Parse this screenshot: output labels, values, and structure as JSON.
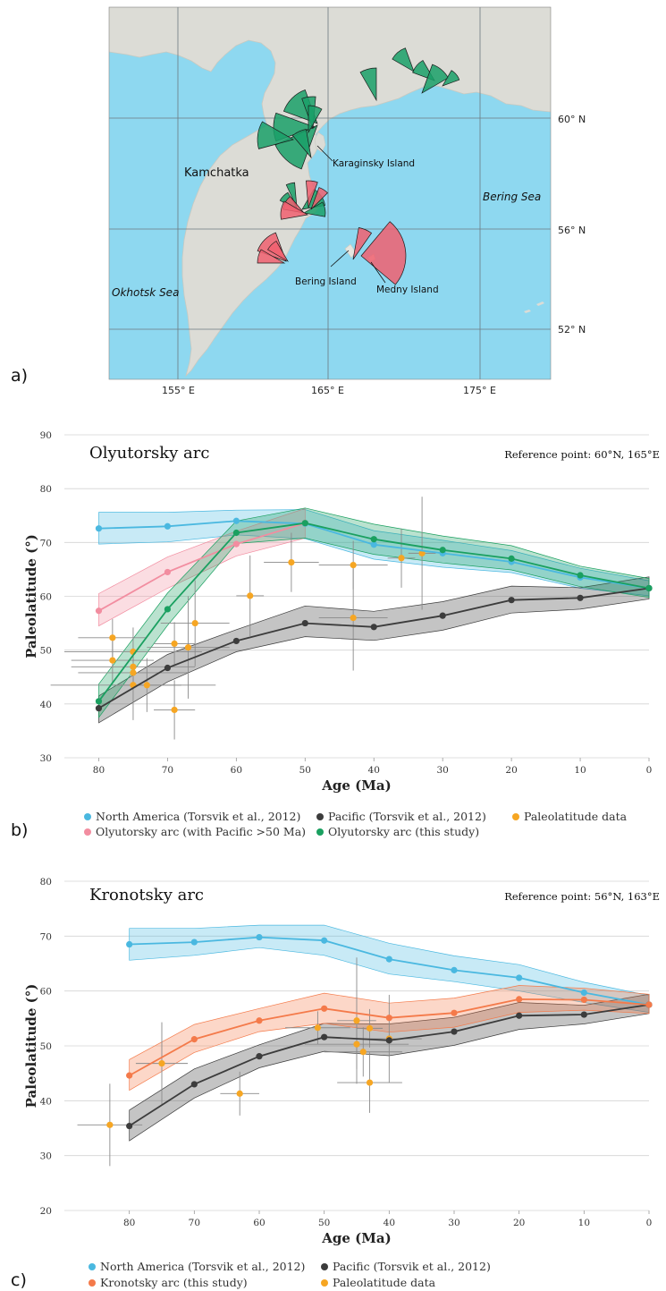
{
  "panel_labels": {
    "a": "a)",
    "b": "b)",
    "c": "c)"
  },
  "map": {
    "place_labels": {
      "kamchatka": "Kamchatka",
      "karaginsky": "Karaginsky Island",
      "bering_sea": "Bering Sea",
      "okhotsk": "Okhotsk Sea",
      "bering_island": "Bering Island",
      "medny": "Medny Island"
    },
    "lat_labels": [
      "60° N",
      "56° N",
      "52° N"
    ],
    "lon_labels": [
      "155° E",
      "165° E",
      "175° E"
    ],
    "colors": {
      "sea": "#8ed8f0",
      "land": "#dcdcd6",
      "green_wedge": "#1aa068",
      "red_wedge": "#f06070"
    }
  },
  "chart_data": [
    {
      "type": "line",
      "title": "Olyutorsky arc",
      "annotation": "Reference point: 60°N, 165°E",
      "xlabel": "Age (Ma)",
      "ylabel": "Paleolatitude (°)",
      "xlim": [
        85,
        0
      ],
      "ylim": [
        30,
        90
      ],
      "xticks": [
        "80",
        "70",
        "60",
        "50",
        "40",
        "30",
        "20",
        "10",
        "0"
      ],
      "yticks": [
        "30",
        "40",
        "50",
        "60",
        "70",
        "80",
        "90"
      ],
      "series": [
        {
          "name": "North America (Torsvik et al., 2012)",
          "color": "#4ab8e0",
          "x": [
            80,
            70,
            60,
            50,
            40,
            30,
            20,
            10,
            0
          ],
          "y": [
            72.6,
            73.0,
            74.0,
            73.5,
            69.6,
            68.0,
            66.4,
            63.5,
            61.5
          ],
          "lower": [
            69.7,
            70.1,
            71.4,
            70.7,
            66.9,
            65.4,
            64.4,
            61.5,
            60.1
          ],
          "upper": [
            75.6,
            75.6,
            76.0,
            76.1,
            72.2,
            70.4,
            68.5,
            65.2,
            62.9
          ]
        },
        {
          "name": "Pacific (Torsvik et al., 2012)",
          "color": "#3c3c3c",
          "x": [
            80,
            70,
            60,
            50,
            40,
            30,
            20,
            10,
            0
          ],
          "y": [
            39.2,
            46.7,
            51.7,
            55.0,
            54.3,
            56.4,
            59.3,
            59.7,
            61.5
          ],
          "lower": [
            36.5,
            44.1,
            49.7,
            52.5,
            51.8,
            53.7,
            56.9,
            57.6,
            59.5
          ],
          "upper": [
            41.5,
            49.2,
            53.8,
            58.2,
            57.2,
            59.0,
            61.9,
            61.6,
            63.6
          ]
        },
        {
          "name": "Paleolatitude data",
          "color": "#f6a623"
        },
        {
          "name": "Olyutorsky arc (with Pacific >50 Ma)",
          "color": "#f28da0",
          "x": [
            80,
            70,
            60,
            50
          ],
          "y": [
            57.3,
            64.5,
            69.7,
            73.6
          ],
          "lower": [
            54.5,
            61.5,
            67.5,
            70.8
          ],
          "upper": [
            60.5,
            67.3,
            72.1,
            76.3
          ]
        },
        {
          "name": "Olyutorsky arc (this study)",
          "color": "#1aa060",
          "x": [
            80,
            70,
            60,
            50,
            40,
            30,
            20,
            10,
            0
          ],
          "y": [
            40.5,
            57.6,
            71.8,
            73.6,
            70.6,
            68.6,
            67.0,
            63.9,
            61.5
          ],
          "lower": [
            37.5,
            54.6,
            69.8,
            70.8,
            67.8,
            66.2,
            64.9,
            61.8,
            59.8
          ],
          "upper": [
            43.7,
            60.6,
            74.0,
            76.4,
            73.4,
            71.2,
            69.4,
            65.6,
            63.3
          ]
        }
      ],
      "points": [
        {
          "x": 78,
          "y": 52.3,
          "xerr": 5,
          "yerr": 3.5
        },
        {
          "x": 78,
          "y": 48.1,
          "xerr": 6,
          "yerr": 4
        },
        {
          "x": 75,
          "y": 49.7,
          "xerr": 10,
          "yerr": 4.5
        },
        {
          "x": 75,
          "y": 46.9,
          "xerr": 9,
          "yerr": 3.5
        },
        {
          "x": 75,
          "y": 45.8,
          "xerr": 8,
          "yerr": 2.5
        },
        {
          "x": 75,
          "y": 43.5,
          "xerr": 12,
          "yerr": 6.5
        },
        {
          "x": 73,
          "y": 43.5,
          "xerr": 5,
          "yerr": 5
        },
        {
          "x": 69,
          "y": 51.2,
          "xerr": 3,
          "yerr": 4
        },
        {
          "x": 69,
          "y": 38.9,
          "xerr": 3,
          "yerr": 5.5
        },
        {
          "x": 67,
          "y": 50.5,
          "xerr": 6,
          "yerr": 9.5
        },
        {
          "x": 66,
          "y": 55.0,
          "xerr": 5,
          "yerr": 8
        },
        {
          "x": 58,
          "y": 60.1,
          "xerr": 2,
          "yerr": 7.5
        },
        {
          "x": 52,
          "y": 66.3,
          "xerr": 4,
          "yerr": 5.5
        },
        {
          "x": 43,
          "y": 65.8,
          "xerr": 5,
          "yerr": 4.5
        },
        {
          "x": 43,
          "y": 56.0,
          "xerr": 5,
          "yerr": 9.8
        },
        {
          "x": 36,
          "y": 67.1,
          "xerr": 2,
          "yerr": 5.5
        },
        {
          "x": 33,
          "y": 68.0,
          "xerr": 2,
          "yerr": 10.5
        }
      ],
      "legend": [
        {
          "label": "North America (Torsvik et al., 2012)",
          "color": "#4ab8e0"
        },
        {
          "label": "Pacific (Torsvik et al., 2012)",
          "color": "#3c3c3c"
        },
        {
          "label": "Paleolatitude data",
          "color": "#f6a623"
        },
        {
          "label": "Olyutorsky arc (with Pacific >50 Ma)",
          "color": "#f28da0"
        },
        {
          "label": "Olyutorsky arc (this study)",
          "color": "#1aa060"
        }
      ]
    },
    {
      "type": "line",
      "title": "Kronotsky arc",
      "annotation": "Reference point: 56°N, 163°E",
      "xlabel": "Age (Ma)",
      "ylabel": "Paleolatitude (°)",
      "xlim": [
        90,
        0
      ],
      "ylim": [
        20,
        80
      ],
      "xticks": [
        "80",
        "70",
        "60",
        "50",
        "40",
        "30",
        "20",
        "10",
        "0"
      ],
      "yticks": [
        "20",
        "30",
        "40",
        "50",
        "60",
        "70",
        "80"
      ],
      "series": [
        {
          "name": "North America (Torsvik et al., 2012)",
          "color": "#4ab8e0",
          "x": [
            80,
            70,
            60,
            50,
            40,
            30,
            20,
            10,
            0
          ],
          "y": [
            68.5,
            68.9,
            69.8,
            69.2,
            65.8,
            63.8,
            62.4,
            59.7,
            57.5
          ],
          "lower": [
            65.6,
            66.5,
            67.9,
            66.5,
            63.1,
            61.7,
            60.0,
            57.9,
            56.1
          ],
          "upper": [
            71.4,
            71.4,
            72.0,
            72.0,
            68.7,
            66.4,
            64.8,
            61.6,
            59.2
          ]
        },
        {
          "name": "Pacific (Torsvik et al., 2012)",
          "color": "#3c3c3c",
          "x": [
            80,
            70,
            60,
            50,
            40,
            30,
            20,
            10,
            0
          ],
          "y": [
            35.4,
            43.0,
            48.1,
            51.6,
            51.0,
            52.6,
            55.5,
            55.7,
            57.5
          ],
          "lower": [
            32.7,
            40.5,
            46.0,
            49.0,
            48.2,
            50.1,
            53.0,
            54.0,
            55.9
          ],
          "upper": [
            38.3,
            45.8,
            50.2,
            54.1,
            54.0,
            55.2,
            57.9,
            57.4,
            59.4
          ]
        },
        {
          "name": "Kronotsky arc (this study)",
          "color": "#f47a4a",
          "x": [
            80,
            70,
            60,
            50,
            40,
            30,
            20,
            10,
            0
          ],
          "y": [
            44.6,
            51.2,
            54.6,
            56.8,
            55.1,
            56.0,
            58.5,
            58.4,
            57.5
          ],
          "lower": [
            41.9,
            48.8,
            52.6,
            54.1,
            52.5,
            53.4,
            56.1,
            56.5,
            55.9
          ],
          "upper": [
            47.5,
            53.9,
            56.8,
            59.6,
            57.8,
            58.7,
            61.0,
            60.5,
            59.4
          ]
        },
        {
          "name": "Paleolatitude data",
          "color": "#f6a623"
        }
      ],
      "points": [
        {
          "x": 83,
          "y": 35.6,
          "xerr": 5,
          "yerr": 7.5
        },
        {
          "x": 75,
          "y": 46.8,
          "xerr": 4,
          "yerr": 7.5
        },
        {
          "x": 63,
          "y": 41.3,
          "xerr": 3,
          "yerr": 4
        },
        {
          "x": 51,
          "y": 53.3,
          "xerr": 5,
          "yerr": 3
        },
        {
          "x": 45,
          "y": 54.6,
          "xerr": 3,
          "yerr": 11.5
        },
        {
          "x": 45,
          "y": 50.3,
          "xerr": 8,
          "yerr": 4.5
        },
        {
          "x": 44,
          "y": 48.9,
          "xerr": 6,
          "yerr": 4.5
        },
        {
          "x": 43,
          "y": 53.2,
          "xerr": 2,
          "yerr": 3.5
        },
        {
          "x": 43,
          "y": 43.3,
          "xerr": 5,
          "yerr": 5.5
        },
        {
          "x": 40,
          "y": 51.3,
          "xerr": 5,
          "yerr": 8
        }
      ],
      "legend": [
        {
          "label": "North America (Torsvik et al., 2012)",
          "color": "#4ab8e0"
        },
        {
          "label": "Pacific (Torsvik et al., 2012)",
          "color": "#3c3c3c"
        },
        {
          "label": "Kronotsky arc (this study)",
          "color": "#f47a4a"
        },
        {
          "label": "Paleolatitude data",
          "color": "#f6a623"
        }
      ]
    }
  ]
}
